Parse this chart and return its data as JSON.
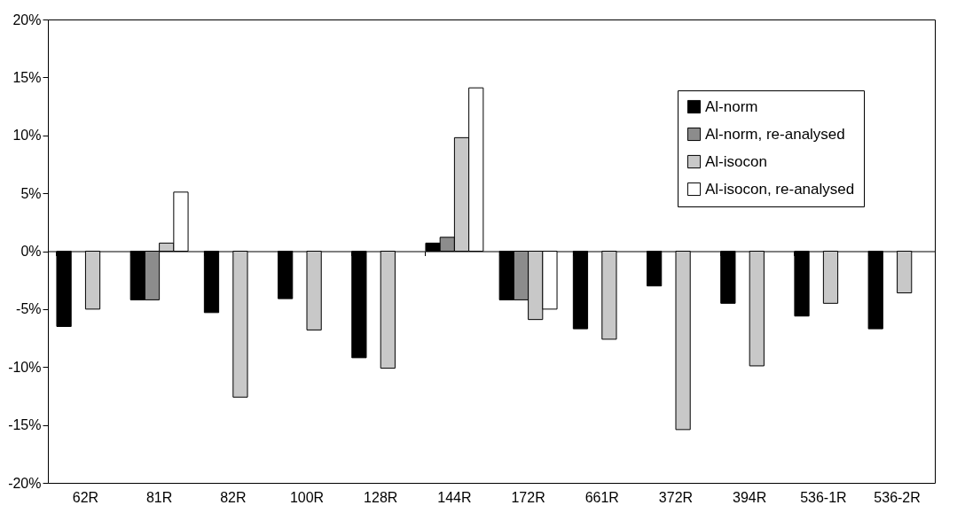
{
  "chart_data": {
    "type": "bar",
    "categories": [
      "62R",
      "81R",
      "82R",
      "100R",
      "128R",
      "144R",
      "172R",
      "661R",
      "372R",
      "394R",
      "536-1R",
      "536-2R"
    ],
    "series": [
      {
        "name": "Al-norm",
        "color": "#000000",
        "values": [
          -6.5,
          -4.2,
          -5.3,
          -4.1,
          -9.2,
          0.7,
          -4.2,
          -6.7,
          -3.0,
          -4.5,
          -5.6,
          -6.7
        ]
      },
      {
        "name": "Al-norm, re-analysed",
        "color": "#8c8c8c",
        "values": [
          null,
          -4.2,
          null,
          null,
          null,
          1.2,
          -4.2,
          null,
          null,
          null,
          null,
          null
        ]
      },
      {
        "name": "Al-isocon",
        "color": "#c8c8c8",
        "values": [
          -5.0,
          0.7,
          -12.6,
          -6.8,
          -10.1,
          9.8,
          -5.9,
          -7.6,
          -15.4,
          -9.9,
          -4.5,
          -3.6
        ]
      },
      {
        "name": "Al-isocon, re-analysed",
        "color": "#ffffff",
        "values": [
          null,
          5.1,
          null,
          null,
          null,
          14.1,
          -5.0,
          null,
          null,
          null,
          null,
          null
        ]
      }
    ],
    "ylim": [
      -20,
      20
    ],
    "yticks": [
      {
        "value": -20,
        "label": "-20%"
      },
      {
        "value": -15,
        "label": "-15%"
      },
      {
        "value": -10,
        "label": "-10%"
      },
      {
        "value": -5,
        "label": "-5%"
      },
      {
        "value": 0,
        "label": "0%"
      },
      {
        "value": 5,
        "label": "5%"
      },
      {
        "value": 10,
        "label": "10%"
      },
      {
        "value": 15,
        "label": "15%"
      },
      {
        "value": 20,
        "label": "20%"
      }
    ],
    "legend": "top right"
  }
}
